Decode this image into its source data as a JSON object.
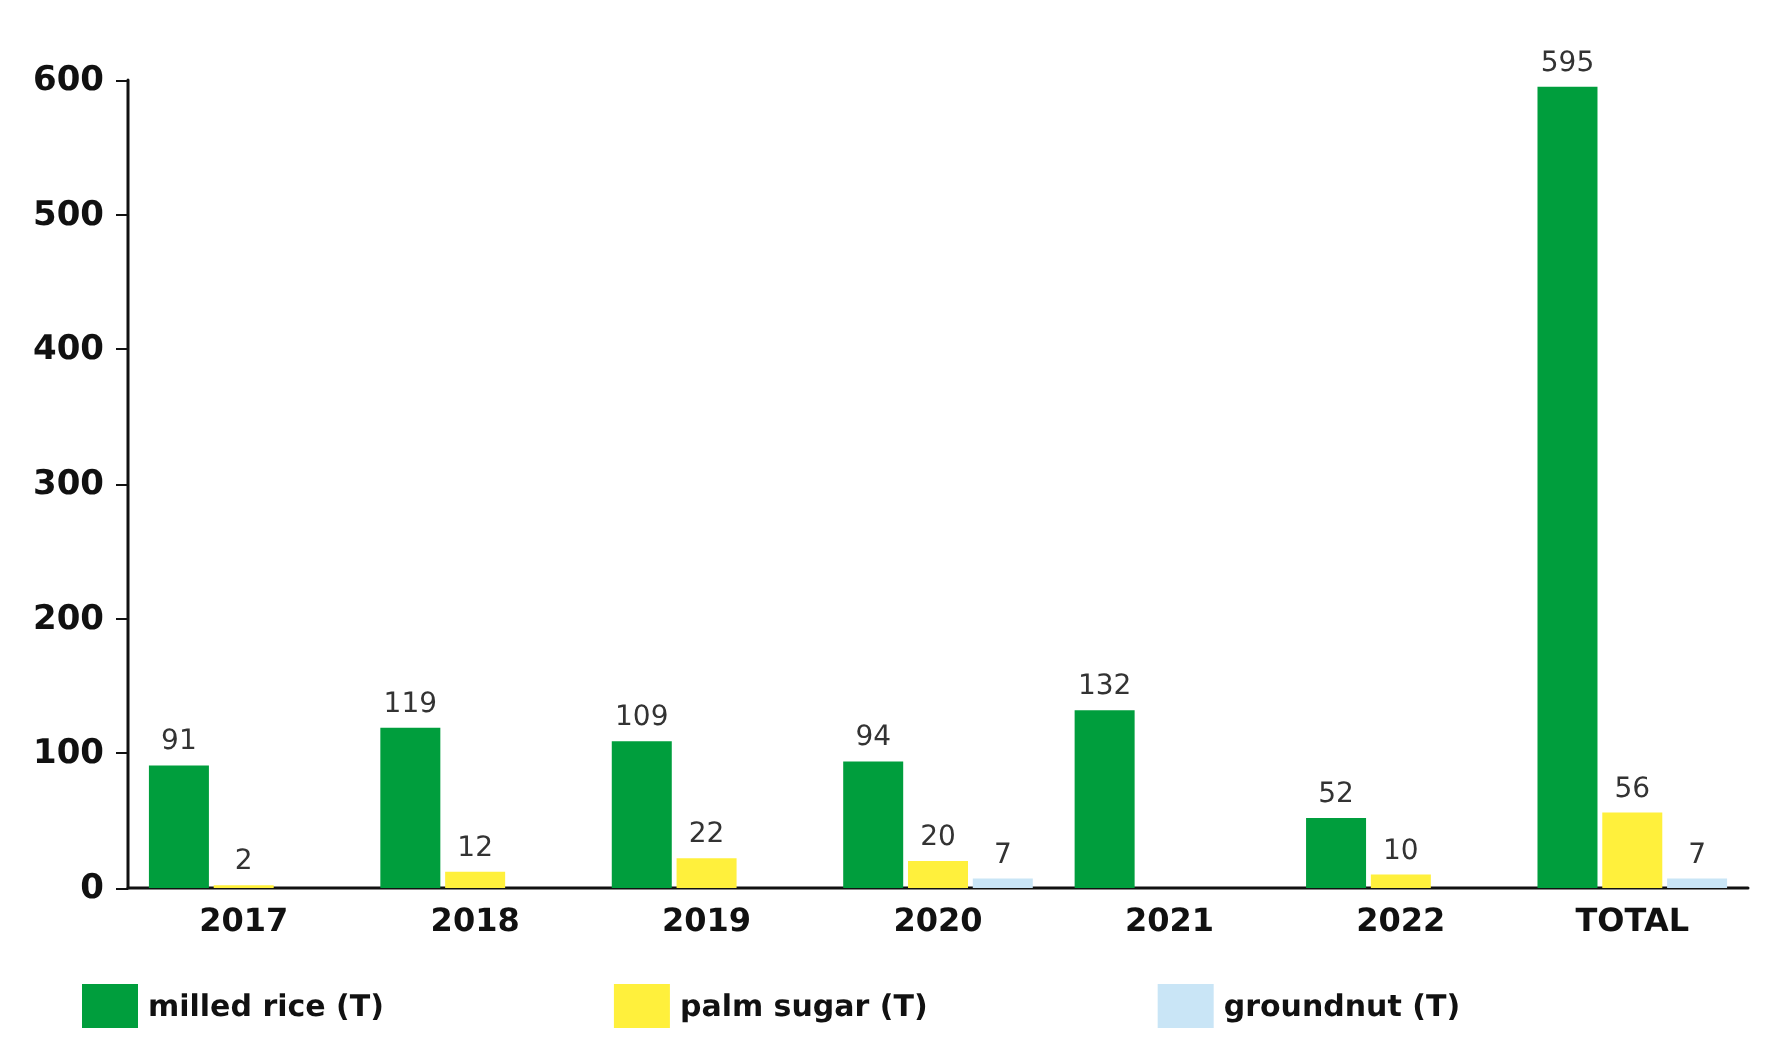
{
  "chart_data": {
    "type": "bar",
    "categories": [
      "2017",
      "2018",
      "2019",
      "2020",
      "2021",
      "2022",
      "TOTAL"
    ],
    "series": [
      {
        "name": "milled rice (T)",
        "color": "#009e3d",
        "values": [
          91,
          119,
          109,
          94,
          132,
          52,
          595
        ]
      },
      {
        "name": "palm sugar (T)",
        "color": "#fff03c",
        "values": [
          2,
          12,
          22,
          20,
          null,
          10,
          56
        ]
      },
      {
        "name": "groundnut (T)",
        "color": "#c9e5f6",
        "values": [
          null,
          null,
          null,
          7,
          null,
          null,
          7
        ]
      }
    ],
    "ylim": [
      0,
      600
    ],
    "yticks": [
      0,
      100,
      200,
      300,
      400,
      500,
      600
    ],
    "grid": false,
    "legend": "bottom",
    "data_labels": true
  }
}
